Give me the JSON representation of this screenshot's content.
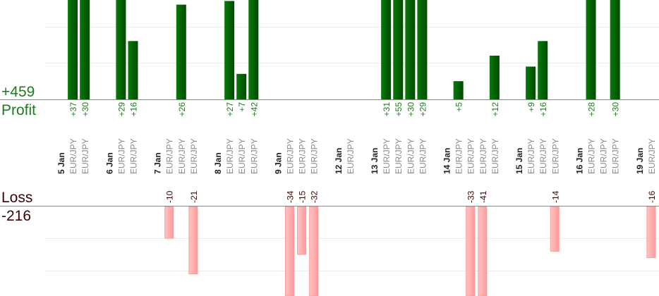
{
  "summary": {
    "profit_total": "+459",
    "profit_label": "Profit",
    "loss_label": "Loss",
    "loss_total": "-216"
  },
  "colors": {
    "profit_text": "#1e7a1e",
    "profit_bar_light": "#087a08",
    "profit_bar_dark": "#004a00",
    "loss_text": "#3a0505",
    "loss_bar_light": "#ffc4c4",
    "loss_bar_dark": "#ff9a9a",
    "pair_text": "#8a8a8a",
    "date_text": "#222222",
    "axis": "#888888",
    "grid": "#ececec"
  },
  "chart_data": {
    "type": "bar",
    "title": "",
    "xlabel": "",
    "ylabel": "",
    "grid": true,
    "profit_grid_step": 10,
    "loss_grid_step": 10,
    "days": [
      {
        "date": "5 Jan",
        "trades": [
          {
            "pair": "EUR/JPY",
            "value": 37,
            "label": "+37"
          },
          {
            "pair": "EUR/JPY",
            "value": 30,
            "label": "+30"
          }
        ]
      },
      {
        "date": "6 Jan",
        "trades": [
          {
            "pair": "EUR/JPY",
            "value": 29,
            "label": "+29"
          },
          {
            "pair": "EUR/JPY",
            "value": 16,
            "label": "+16"
          }
        ]
      },
      {
        "date": "7 Jan",
        "trades": [
          {
            "pair": "EUR/JPY",
            "value": -10,
            "label": "-10"
          },
          {
            "pair": "EUR/JPY",
            "value": 26,
            "label": "+26"
          },
          {
            "pair": "EUR/JPY",
            "value": -21,
            "label": "-21"
          }
        ]
      },
      {
        "date": "8 Jan",
        "trades": [
          {
            "pair": "EUR/JPY",
            "value": 27,
            "label": "+27"
          },
          {
            "pair": "EUR/JPY",
            "value": 7,
            "label": "+7"
          },
          {
            "pair": "EUR/JPY",
            "value": 42,
            "label": "+42"
          }
        ]
      },
      {
        "date": "9 Jan",
        "trades": [
          {
            "pair": "EUR/JPY",
            "value": -34,
            "label": "-34"
          },
          {
            "pair": "EUR/JPY",
            "value": -15,
            "label": "-15"
          },
          {
            "pair": "EUR/JPY",
            "value": -32,
            "label": "-32"
          }
        ]
      },
      {
        "date": "12 Jan",
        "trades": [
          {
            "pair": "EUR/JPY",
            "value": 0,
            "label": ""
          }
        ]
      },
      {
        "date": "13 Jan",
        "trades": [
          {
            "pair": "EUR/JPY",
            "value": 31,
            "label": "+31"
          },
          {
            "pair": "EUR/JPY",
            "value": 55,
            "label": "+55"
          },
          {
            "pair": "EUR/JPY",
            "value": 30,
            "label": "+30"
          },
          {
            "pair": "EUR/JPY",
            "value": 29,
            "label": "+29"
          }
        ]
      },
      {
        "date": "14 Jan",
        "trades": [
          {
            "pair": "EUR/JPY",
            "value": 5,
            "label": "+5"
          },
          {
            "pair": "EUR/JPY",
            "value": -33,
            "label": "-33"
          },
          {
            "pair": "EUR/JPY",
            "value": -41,
            "label": "-41"
          },
          {
            "pair": "EUR/JPY",
            "value": 12,
            "label": "+12"
          }
        ]
      },
      {
        "date": "15 Jan",
        "trades": [
          {
            "pair": "EUR/JPY",
            "value": 9,
            "label": "+9"
          },
          {
            "pair": "EUR/JPY",
            "value": 16,
            "label": "+16"
          },
          {
            "pair": "EUR/JPY",
            "value": -14,
            "label": "-14"
          }
        ]
      },
      {
        "date": "16 Jan",
        "trades": [
          {
            "pair": "EUR/JPY",
            "value": 28,
            "label": "+28"
          },
          {
            "pair": "EUR/JPY",
            "value": 0,
            "label": ""
          },
          {
            "pair": "EUR/JPY",
            "value": 30,
            "label": "+30"
          }
        ]
      },
      {
        "date": "19 Jan",
        "trades": [
          {
            "pair": "EUR/JPY",
            "value": -16,
            "label": "-16"
          }
        ]
      }
    ]
  }
}
